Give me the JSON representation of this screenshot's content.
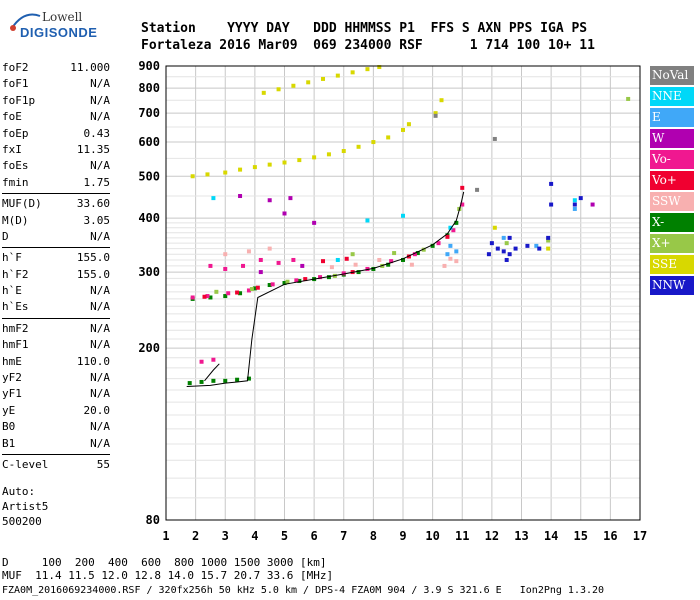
{
  "logo": {
    "line1": "Lowell",
    "line2": "DIGISONDE"
  },
  "header": {
    "row1": "Station    YYYY DAY   DDD HHMMSS P1  FFS S AXN PPS IGA PS",
    "row2": "Fortaleza 2016 Mar09  069 234000 RSF      1 714 100 10+ 11"
  },
  "params_groups": [
    [
      {
        "k": "foF2",
        "v": "11.000"
      },
      {
        "k": "foF1",
        "v": "N/A"
      },
      {
        "k": "foF1p",
        "v": "N/A"
      },
      {
        "k": "foE",
        "v": "N/A"
      },
      {
        "k": "foEp",
        "v": "0.43"
      },
      {
        "k": "fxI",
        "v": "11.35"
      },
      {
        "k": "foEs",
        "v": "N/A"
      },
      {
        "k": "fmin",
        "v": "1.75"
      }
    ],
    [
      {
        "k": "MUF(D)",
        "v": "33.60"
      },
      {
        "k": "M(D)",
        "v": "3.05"
      },
      {
        "k": "D",
        "v": "N/A"
      }
    ],
    [
      {
        "k": "h`F",
        "v": "155.0"
      },
      {
        "k": "h`F2",
        "v": "155.0"
      },
      {
        "k": "h`E",
        "v": "N/A"
      },
      {
        "k": "h`Es",
        "v": "N/A"
      }
    ],
    [
      {
        "k": "hmF2",
        "v": "N/A"
      },
      {
        "k": "hmF1",
        "v": "N/A"
      },
      {
        "k": "hmE",
        "v": "110.0"
      },
      {
        "k": "yF2",
        "v": "N/A"
      },
      {
        "k": "yF1",
        "v": "N/A"
      },
      {
        "k": "yE",
        "v": "20.0"
      },
      {
        "k": "B0",
        "v": "N/A"
      },
      {
        "k": "B1",
        "v": "N/A"
      }
    ],
    [
      {
        "k": "C-level",
        "v": "55"
      }
    ]
  ],
  "auto": {
    "line1": "Auto:",
    "line2": "Artist5",
    "line3": "500200"
  },
  "legend": [
    {
      "label": "NoVal",
      "color": "#808080"
    },
    {
      "label": "NNE",
      "color": "#00d8f8"
    },
    {
      "label": "E",
      "color": "#40a8f8"
    },
    {
      "label": "W",
      "color": "#b000b0"
    },
    {
      "label": "Vo-",
      "color": "#f01890"
    },
    {
      "label": "Vo+",
      "color": "#f00030"
    },
    {
      "label": "SSW",
      "color": "#f8b0b0"
    },
    {
      "label": "X-",
      "color": "#008000"
    },
    {
      "label": "X+",
      "color": "#98c848"
    },
    {
      "label": "SSE",
      "color": "#d8d800"
    },
    {
      "label": "NNW",
      "color": "#1818c8"
    }
  ],
  "bottom": {
    "row1": "D     100  200  400  600  800 1000 1500 3000 [km]",
    "row2": "MUF  11.4 11.5 12.0 12.8 14.0 15.7 20.7 33.6 [MHz]"
  },
  "footer": "FZA0M_2016069234000.RSF / 320fx256h 50 kHz 5.0 km / DPS-4 FZA0M 904 / 3.9 S 321.6 E   Ion2Png 1.3.20",
  "chart_data": {
    "type": "scatter",
    "x_label": "",
    "y_label": "",
    "xlim": [
      1,
      17
    ],
    "ylim": [
      80,
      900
    ],
    "x_ticks": [
      1,
      2,
      3,
      4,
      5,
      6,
      7,
      8,
      9,
      10,
      11,
      12,
      13,
      14,
      15,
      16,
      17
    ],
    "y_ticks": [
      80,
      200,
      300,
      400,
      500,
      600,
      700,
      800,
      900
    ],
    "y_scale": "log",
    "grid": true,
    "series": [
      {
        "name": "X-",
        "color": "#008000",
        "points": [
          [
            1.9,
            260
          ],
          [
            2.5,
            262
          ],
          [
            3.0,
            264
          ],
          [
            3.5,
            268
          ],
          [
            4.0,
            275
          ],
          [
            4.5,
            280
          ],
          [
            5.0,
            283
          ],
          [
            5.5,
            286
          ],
          [
            6.0,
            289
          ],
          [
            6.5,
            292
          ],
          [
            7.0,
            296
          ],
          [
            7.5,
            300
          ],
          [
            8.0,
            305
          ],
          [
            8.5,
            312
          ],
          [
            9.0,
            320
          ],
          [
            9.5,
            332
          ],
          [
            10.0,
            345
          ],
          [
            10.5,
            365
          ],
          [
            10.8,
            390
          ],
          [
            1.8,
            166
          ],
          [
            2.2,
            167
          ],
          [
            2.6,
            168
          ],
          [
            3.0,
            168
          ],
          [
            3.4,
            169
          ],
          [
            3.8,
            170
          ]
        ]
      },
      {
        "name": "Vo-",
        "color": "#f01890",
        "points": [
          [
            1.9,
            262
          ],
          [
            2.4,
            264
          ],
          [
            3.1,
            268
          ],
          [
            3.8,
            272
          ],
          [
            4.6,
            281
          ],
          [
            5.4,
            287
          ],
          [
            6.2,
            292
          ],
          [
            7.0,
            298
          ],
          [
            7.8,
            305
          ],
          [
            8.6,
            318
          ],
          [
            9.4,
            330
          ],
          [
            10.2,
            350
          ],
          [
            10.7,
            375
          ],
          [
            11.0,
            430
          ],
          [
            2.5,
            310
          ],
          [
            3.0,
            305
          ],
          [
            3.6,
            310
          ],
          [
            4.2,
            320
          ],
          [
            4.8,
            315
          ],
          [
            5.3,
            320
          ],
          [
            2.2,
            186
          ],
          [
            2.6,
            188
          ]
        ]
      },
      {
        "name": "Vo+",
        "color": "#f00030",
        "points": [
          [
            2.3,
            263
          ],
          [
            3.4,
            269
          ],
          [
            4.1,
            276
          ],
          [
            5.7,
            289
          ],
          [
            7.3,
            300
          ],
          [
            9.2,
            326
          ],
          [
            10.5,
            362
          ],
          [
            11.0,
            470
          ],
          [
            6.3,
            318
          ],
          [
            7.1,
            322
          ]
        ]
      },
      {
        "name": "W",
        "color": "#b000b0",
        "points": [
          [
            3.5,
            450
          ],
          [
            4.5,
            440
          ],
          [
            5.2,
            445
          ],
          [
            5.0,
            410
          ],
          [
            6.0,
            390
          ],
          [
            15.4,
            430
          ],
          [
            4.2,
            300
          ],
          [
            5.6,
            310
          ]
        ]
      },
      {
        "name": "SSW",
        "color": "#f8b0b0",
        "points": [
          [
            3.0,
            330
          ],
          [
            3.8,
            335
          ],
          [
            4.5,
            340
          ],
          [
            6.6,
            308
          ],
          [
            7.4,
            312
          ],
          [
            8.2,
            320
          ],
          [
            9.3,
            312
          ],
          [
            10.4,
            310
          ],
          [
            10.6,
            322
          ],
          [
            10.8,
            318
          ]
        ]
      },
      {
        "name": "X+",
        "color": "#98c848",
        "points": [
          [
            2.7,
            270
          ],
          [
            3.9,
            274
          ],
          [
            5.1,
            285
          ],
          [
            6.7,
            294
          ],
          [
            8.3,
            310
          ],
          [
            9.7,
            338
          ],
          [
            10.9,
            420
          ],
          [
            12.5,
            350
          ],
          [
            13.9,
            355
          ],
          [
            7.3,
            330
          ],
          [
            8.7,
            332
          ],
          [
            16.6,
            755
          ]
        ]
      },
      {
        "name": "SSE",
        "color": "#d8d800",
        "points": [
          [
            1.9,
            500
          ],
          [
            2.4,
            505
          ],
          [
            3.0,
            510
          ],
          [
            3.5,
            518
          ],
          [
            4.0,
            525
          ],
          [
            4.5,
            532
          ],
          [
            5.0,
            538
          ],
          [
            5.5,
            545
          ],
          [
            6.0,
            553
          ],
          [
            6.5,
            562
          ],
          [
            7.0,
            572
          ],
          [
            7.5,
            585
          ],
          [
            8.0,
            600
          ],
          [
            8.5,
            615
          ],
          [
            9.0,
            640
          ],
          [
            9.2,
            660
          ],
          [
            4.3,
            780
          ],
          [
            4.8,
            795
          ],
          [
            5.3,
            810
          ],
          [
            5.8,
            825
          ],
          [
            6.3,
            840
          ],
          [
            6.8,
            855
          ],
          [
            7.3,
            870
          ],
          [
            7.8,
            885
          ],
          [
            8.2,
            895
          ],
          [
            10.1,
            700
          ],
          [
            10.3,
            750
          ],
          [
            12.1,
            380
          ],
          [
            13.9,
            340
          ]
        ]
      },
      {
        "name": "NNE",
        "color": "#00d8f8",
        "points": [
          [
            2.6,
            445
          ],
          [
            7.8,
            395
          ],
          [
            9.0,
            405
          ],
          [
            10.6,
            380
          ],
          [
            14.8,
            440
          ],
          [
            6.8,
            320
          ]
        ]
      },
      {
        "name": "E",
        "color": "#40a8f8",
        "points": [
          [
            10.6,
            345
          ],
          [
            10.8,
            335
          ],
          [
            14.8,
            420
          ],
          [
            12.4,
            360
          ],
          [
            13.5,
            345
          ],
          [
            10.5,
            330
          ]
        ]
      },
      {
        "name": "NNW",
        "color": "#1818c8",
        "points": [
          [
            12.0,
            350
          ],
          [
            12.2,
            340
          ],
          [
            12.4,
            335
          ],
          [
            12.6,
            330
          ],
          [
            12.8,
            340
          ],
          [
            13.2,
            345
          ],
          [
            13.6,
            340
          ],
          [
            14.0,
            430
          ],
          [
            14.0,
            480
          ],
          [
            12.5,
            320
          ],
          [
            12.6,
            360
          ],
          [
            11.9,
            330
          ],
          [
            13.9,
            360
          ],
          [
            15.0,
            445
          ],
          [
            14.8,
            430
          ]
        ]
      },
      {
        "name": "NoVal",
        "color": "#808080",
        "points": [
          [
            11.5,
            465
          ],
          [
            12.1,
            610
          ],
          [
            10.1,
            690
          ]
        ]
      }
    ],
    "trace_curves": [
      {
        "points": [
          [
            1.7,
            163
          ],
          [
            2.5,
            164
          ],
          [
            3.0,
            166
          ],
          [
            3.4,
            167
          ],
          [
            3.75,
            168
          ],
          [
            3.9,
            210
          ],
          [
            4.1,
            262
          ],
          [
            5,
            281
          ],
          [
            6,
            289
          ],
          [
            7,
            297
          ],
          [
            8,
            306
          ],
          [
            9,
            322
          ],
          [
            10,
            347
          ],
          [
            10.5,
            368
          ],
          [
            10.8,
            395
          ],
          [
            10.95,
            430
          ],
          [
            11.05,
            460
          ]
        ]
      },
      {
        "points": [
          [
            2.3,
            168
          ],
          [
            2.6,
            178
          ],
          [
            2.8,
            184
          ]
        ]
      }
    ]
  }
}
